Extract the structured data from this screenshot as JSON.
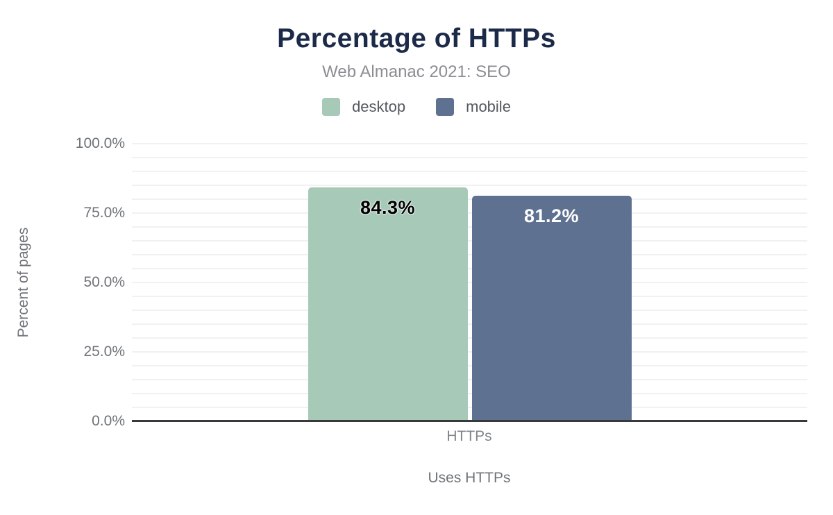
{
  "header": {
    "title": "Percentage of HTTPs",
    "subtitle": "Web Almanac 2021: SEO"
  },
  "colors": {
    "title": "#1c2a49",
    "desktop": "#a6c9b8",
    "mobile": "#5f7190",
    "gridline": "#f1f1f1",
    "baseline": "#38393c",
    "desktop_value_label": "#000000",
    "mobile_value_label": "#ffffff"
  },
  "chart_data": {
    "type": "bar",
    "title": "Percentage of HTTPs",
    "subtitle": "Web Almanac 2021: SEO",
    "categories": [
      "HTTPs"
    ],
    "series": [
      {
        "name": "desktop",
        "values": [
          84.3
        ],
        "color": "#a6c9b8",
        "label_color": "#000000",
        "label_halo": true
      },
      {
        "name": "mobile",
        "values": [
          81.2
        ],
        "color": "#5f7190",
        "label_color": "#ffffff",
        "label_halo": false
      }
    ],
    "value_labels": [
      [
        "84.3%"
      ],
      [
        "81.2%"
      ]
    ],
    "xlabel": "Uses HTTPs",
    "ylabel": "Percent of pages",
    "ylim": [
      0,
      100
    ],
    "yticks": [
      {
        "value": 0,
        "label": "0.0%"
      },
      {
        "value": 25,
        "label": "25.0%"
      },
      {
        "value": 50,
        "label": "50.0%"
      },
      {
        "value": 75,
        "label": "75.0%"
      },
      {
        "value": 100,
        "label": "100.0%"
      }
    ],
    "minor_grid_step": 5,
    "grid": true,
    "legend_position": "top"
  }
}
